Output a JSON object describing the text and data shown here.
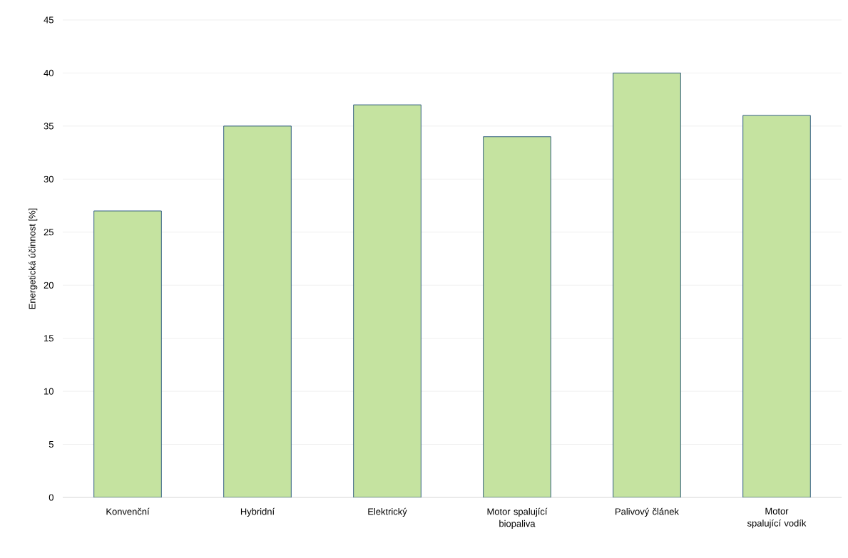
{
  "chart_data": {
    "type": "bar",
    "ylabel": "Energetická účinnost [%]",
    "categories": [
      "Konvenční",
      "Hybridní",
      "Elektrický",
      "Motor spalující biopaliva",
      "Palivový článek",
      "Motor spalující vodík"
    ],
    "values": [
      27,
      35,
      37,
      34,
      40,
      36
    ],
    "color": "#c5e3a0",
    "ylim": [
      0,
      45
    ],
    "yticks": [
      0,
      5,
      10,
      15,
      20,
      25,
      30,
      35,
      40,
      45
    ],
    "grid": "y"
  }
}
